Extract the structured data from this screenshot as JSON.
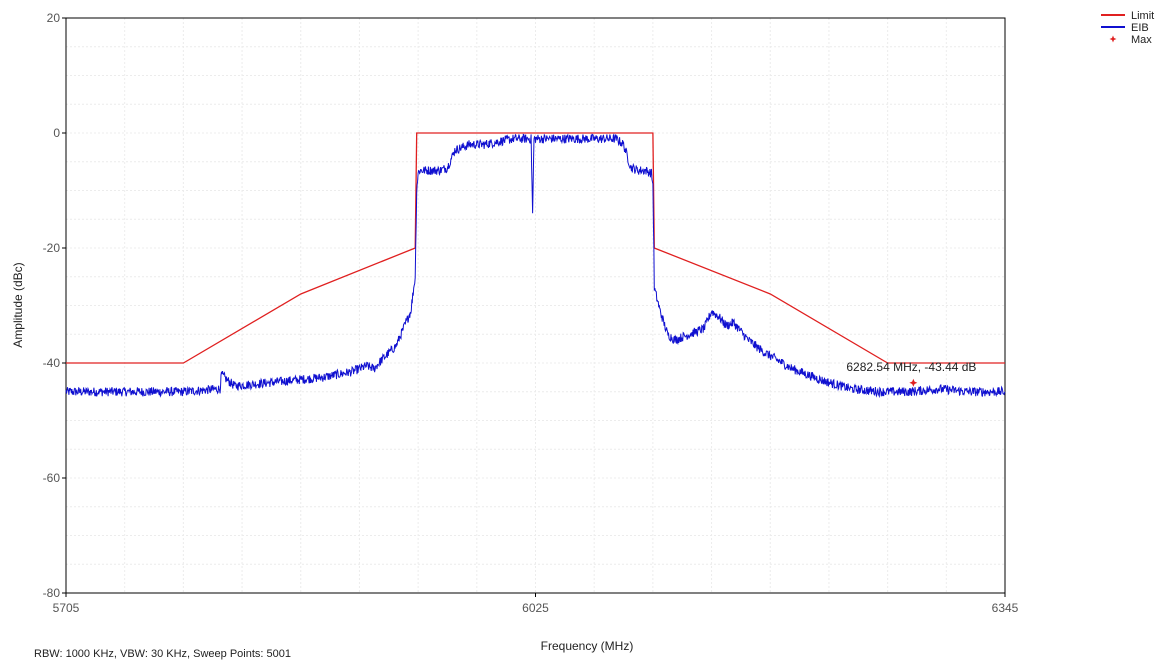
{
  "chart_data": {
    "type": "line",
    "title": "",
    "xlabel": "Frequency (MHz)",
    "ylabel": "Amplitude (dBc)",
    "xlim": [
      5705,
      6345
    ],
    "ylim": [
      -80,
      20
    ],
    "x_ticks": [
      "5705",
      "6025",
      "6345"
    ],
    "y_ticks": [
      "20",
      "0",
      "-20",
      "-40",
      "-60",
      "-80"
    ],
    "grid": true,
    "legend_position": "top-right",
    "colors": {
      "limit": "#e02020",
      "eib": "#1010d0",
      "max": "#e02020"
    },
    "series": [
      {
        "name": "Limit",
        "x": [
          5705,
          5785,
          5865,
          5943,
          5944,
          6105,
          6106,
          6185,
          6265,
          6345
        ],
        "y": [
          -40,
          -40,
          -28,
          -20,
          0,
          0,
          -20,
          -28,
          -40,
          -40
        ]
      },
      {
        "name": "EIB",
        "x": [
          5705,
          5745,
          5785,
          5810,
          5811,
          5815,
          5820,
          5840,
          5860,
          5880,
          5900,
          5910,
          5915,
          5920,
          5930,
          5935,
          5940,
          5943,
          5944,
          5945,
          5946,
          5960,
          5965,
          5970,
          5980,
          5990,
          6000,
          6010,
          6020,
          6022,
          6023,
          6024,
          6026,
          6030,
          6040,
          6050,
          6060,
          6070,
          6080,
          6085,
          6090,
          6095,
          6100,
          6104,
          6105,
          6106,
          6110,
          6115,
          6120,
          6125,
          6130,
          6140,
          6145,
          6150,
          6155,
          6160,
          6170,
          6180,
          6190,
          6200,
          6220,
          6240,
          6260,
          6280,
          6300,
          6320,
          6345
        ],
        "y": [
          -45,
          -45,
          -45,
          -44.5,
          -42,
          -43,
          -44,
          -43.5,
          -43,
          -42.5,
          -41.5,
          -40.5,
          -41,
          -39.5,
          -37,
          -34,
          -31,
          -25,
          -10,
          -7,
          -6.5,
          -6.5,
          -6,
          -3,
          -2,
          -2,
          -1.5,
          -1,
          -1,
          -1,
          -14,
          -1,
          -1,
          -1,
          -1,
          -1,
          -1,
          -1,
          -1,
          -2,
          -6,
          -6.5,
          -6.5,
          -7,
          -9,
          -27,
          -31,
          -35,
          -36,
          -35.5,
          -35,
          -34,
          -31,
          -32,
          -33.5,
          -33,
          -36,
          -38,
          -39.5,
          -41,
          -43,
          -44.5,
          -45,
          -45,
          -44.5,
          -45,
          -45
        ]
      }
    ],
    "markers": [
      {
        "name": "Max",
        "x": 6282.54,
        "y": -43.44,
        "label": "6282.54 MHz, -43.44 dB"
      }
    ],
    "footer": "RBW: 1000 KHz,  VBW: 30 KHz,  Sweep Points: 5001"
  }
}
